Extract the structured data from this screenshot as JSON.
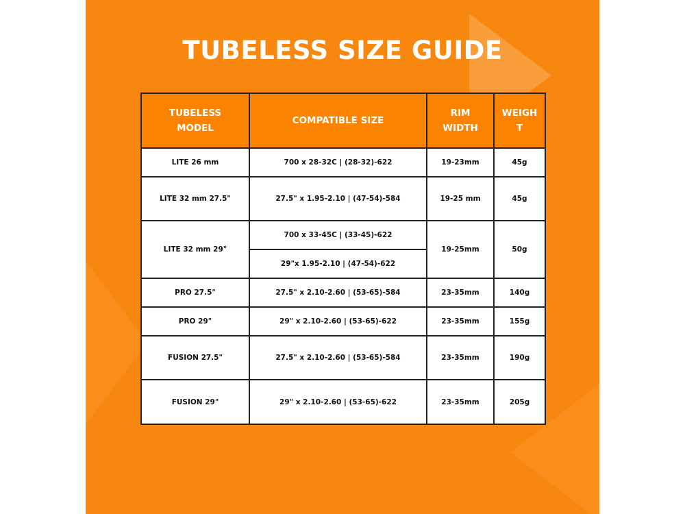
{
  "title": "TUBELESS SIZE GUIDE",
  "colors": {
    "background": "#f8870f",
    "header": "#fb8300",
    "border": "#222222"
  },
  "table": {
    "headers": [
      "TUBELESS MODEL",
      "COMPATIBLE SIZE",
      "RIM WIDTH",
      "WEIGHT"
    ],
    "header_lines": [
      [
        "TUBELESS",
        "MODEL"
      ],
      [
        "COMPATIBLE SIZE"
      ],
      [
        "RIM",
        "WIDTH"
      ],
      [
        "WEIGH",
        "T"
      ]
    ],
    "rows": [
      {
        "model": "LITE 26 mm",
        "sizes": [
          "700 x 28-32C | (28-32)-622"
        ],
        "rim": "19-23mm",
        "weight": "45g"
      },
      {
        "model": "LITE 32 mm 27.5\"",
        "sizes": [
          "27.5\" x 1.95-2.10 | (47-54)-584"
        ],
        "rim": "19-25 mm",
        "weight": "45g"
      },
      {
        "model": "LITE 32 mm 29\"",
        "sizes": [
          "700 x 33-45C | (33-45)-622",
          "29\"x 1.95-2.10 | (47-54)-622"
        ],
        "rim": "19-25mm",
        "weight": "50g"
      },
      {
        "model": "PRO 27.5\"",
        "sizes": [
          "27.5\" x 2.10-2.60 |  (53-65)-584"
        ],
        "rim": "23-35mm",
        "weight": "140g"
      },
      {
        "model": "PRO 29\"",
        "sizes": [
          "29\" x 2.10-2.60 |  (53-65)-622"
        ],
        "rim": "23-35mm",
        "weight": "155g"
      },
      {
        "model": "FUSION 27.5\"",
        "sizes": [
          "27.5\" x 2.10-2.60 |  (53-65)-584"
        ],
        "rim": "23-35mm",
        "weight": "190g"
      },
      {
        "model": "FUSION 29\"",
        "sizes": [
          "29\" x 2.10-2.60 | (53-65)-622"
        ],
        "rim": "23-35mm",
        "weight": "205g"
      }
    ]
  }
}
